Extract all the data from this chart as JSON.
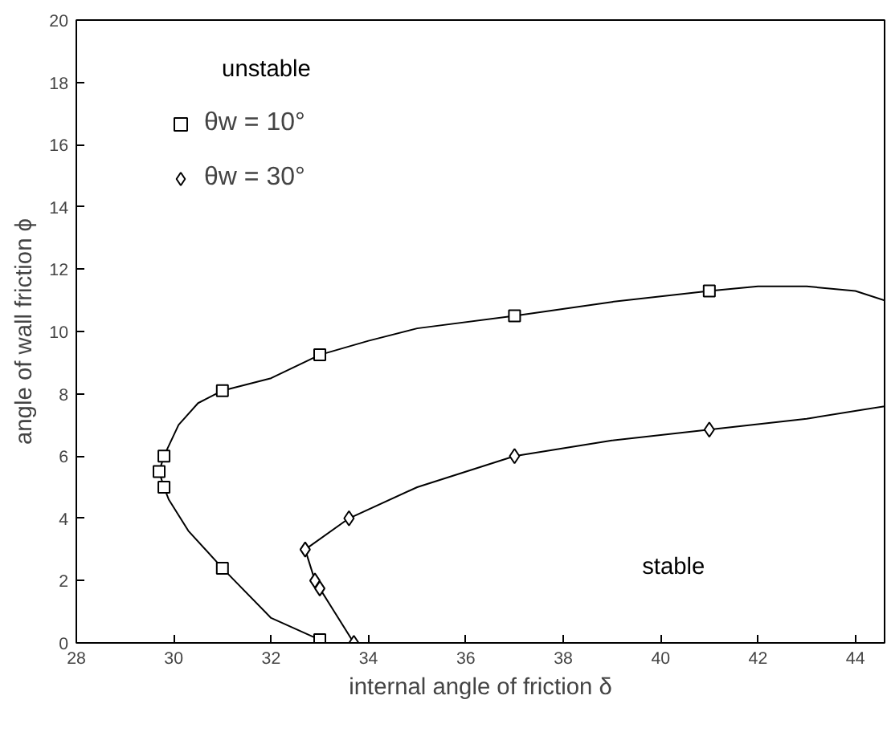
{
  "chart_data": {
    "type": "line",
    "xlabel": "internal angle of friction δ",
    "ylabel": "angle of wall friction ϕ",
    "xlim": [
      28,
      44.6
    ],
    "ylim": [
      0,
      20
    ],
    "xticks": [
      28,
      30,
      32,
      34,
      36,
      38,
      40,
      42,
      44
    ],
    "yticks": [
      0,
      2,
      4,
      6,
      8,
      10,
      12,
      14,
      16,
      18,
      20
    ],
    "grid": false,
    "legend": "top left",
    "annotations": [
      "unstable",
      "stable"
    ],
    "series": [
      {
        "color": "#000000",
        "x": [
          33,
          32,
          31,
          30.3,
          29.9,
          29.8,
          29.7,
          29.8,
          30.1,
          30.5,
          31,
          32,
          33,
          34,
          35,
          37,
          39,
          41,
          42,
          43,
          44,
          44.6
        ],
        "values": [
          0.1,
          0.8,
          2.4,
          3.6,
          4.6,
          5,
          5.5,
          6,
          7.0,
          7.7,
          8.1,
          8.5,
          9.25,
          9.7,
          10.1,
          10.5,
          10.95,
          11.3,
          11.45,
          11.45,
          11.3,
          11.0
        ]
      },
      {
        "color": "#000000",
        "x": [
          33.7,
          33.3,
          33,
          32.9,
          32.7,
          33.6,
          35,
          37,
          39,
          41,
          43,
          44.6
        ],
        "values": [
          0,
          1.0,
          1.75,
          2,
          3,
          4,
          5,
          6,
          6.5,
          6.85,
          7.2,
          7.6
        ]
      },
      {
        "type": "scatter",
        "name": "θw = 10°",
        "marker": "square",
        "color": "#000000",
        "x": [
          33,
          31,
          29.8,
          29.7,
          29.8,
          31,
          33,
          37,
          41
        ],
        "values": [
          0.1,
          2.4,
          5,
          5.5,
          6,
          8.1,
          9.25,
          10.5,
          11.3
        ]
      },
      {
        "type": "scatter",
        "name": "θw = 30°",
        "marker": "diamond",
        "color": "#000000",
        "x": [
          33.7,
          33,
          32.9,
          32.7,
          33.6,
          37,
          41
        ],
        "values": [
          0,
          1.75,
          2,
          3,
          4,
          6,
          6.85
        ]
      }
    ]
  }
}
